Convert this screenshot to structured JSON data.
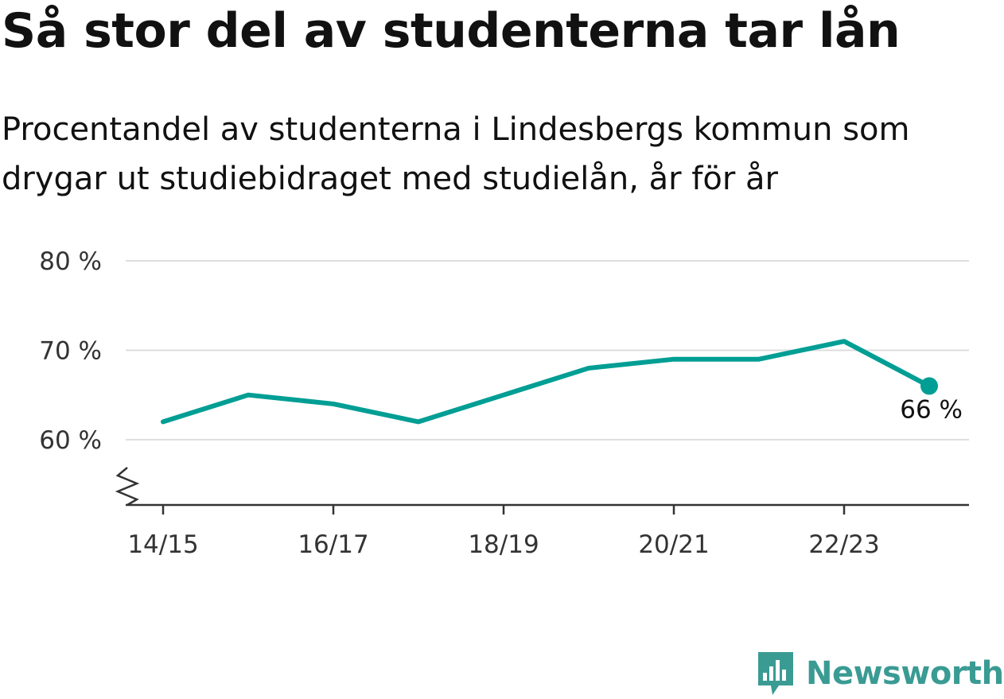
{
  "title": "Så stor del av studenterna tar lån",
  "subtitle": "Procentandel av studenterna i Lindesbergs kommun som drygar ut studiebidraget med studielån, år för år",
  "colors": {
    "line": "#009e94",
    "grid": "#dddddd",
    "axis": "#333333",
    "brand": "#3a9b93"
  },
  "brand": {
    "name": "Newsworthy",
    "icon": "newsworthy-logo-icon"
  },
  "chart_data": {
    "type": "line",
    "title": "Så stor del av studenterna tar lån",
    "x": [
      "14/15",
      "15/16",
      "16/17",
      "17/18",
      "18/19",
      "19/20",
      "20/21",
      "21/22",
      "22/23",
      "23/24"
    ],
    "series": [
      {
        "values": [
          62,
          65,
          64,
          62,
          65,
          68,
          69,
          69,
          71,
          66
        ]
      }
    ],
    "x_tick_labels": [
      "14/15",
      "16/17",
      "18/19",
      "20/21",
      "22/23"
    ],
    "y_ticks": [
      60,
      70,
      80
    ],
    "y_tick_labels": [
      "60 %",
      "70 %",
      "80 %"
    ],
    "ylim": [
      52.7,
      80
    ],
    "y_axis_broken": true,
    "grid": true,
    "end_label": "66 %"
  }
}
